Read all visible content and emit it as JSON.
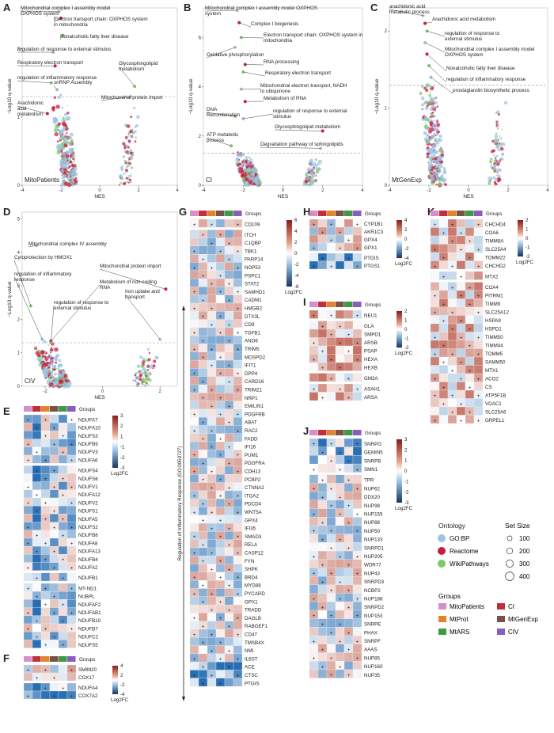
{
  "panel_labels": [
    "A",
    "B",
    "C",
    "D",
    "E",
    "F",
    "G",
    "H",
    "I",
    "J",
    "K"
  ],
  "chart_data": [
    {
      "type": "scatter",
      "id": "A",
      "panel_name": "MitoPatients",
      "xlabel": "NES",
      "ylabel": "−Log10 q-value",
      "xlim": [
        -4,
        4
      ],
      "ylim": [
        0,
        2.6
      ],
      "xticks": [
        "-4",
        "-2",
        "0",
        "2",
        "4"
      ],
      "yticks": [
        "0",
        "1",
        "2"
      ],
      "threshold": 1.3,
      "annotations": [
        {
          "text": "Mitochondrial complex I assembly model OXPHOS system",
          "x": -2.1,
          "y": 2.55
        },
        {
          "text": "Electron transport chain: OXPHOS system in mitochondria",
          "x": -2.0,
          "y": 2.45
        },
        {
          "text": "Nonalcoholic fatty liver disease",
          "x": -1.9,
          "y": 2.2
        },
        {
          "text": "regulation of response to external stimulus",
          "x": -2.4,
          "y": 1.95
        },
        {
          "text": "Respiratory electron transport",
          "x": -2.3,
          "y": 1.75
        },
        {
          "text": "regulation of inflammatory response",
          "x": -2.5,
          "y": 1.5
        },
        {
          "text": "snRNP Assembly",
          "x": -2.2,
          "y": 1.4
        },
        {
          "text": "Arachidonic acid metabolism",
          "x": -2.7,
          "y": 1.05
        },
        {
          "text": "Glycosphingolipid metabolism",
          "x": 1.8,
          "y": 1.45
        },
        {
          "text": "Mitochondrial protein import",
          "x": 1.6,
          "y": 1.3
        }
      ]
    },
    {
      "type": "scatter",
      "id": "B",
      "panel_name": "CI",
      "xlabel": "NES",
      "ylabel": "−Log10 q-value",
      "xlim": [
        -4,
        4
      ],
      "ylim": [
        0,
        7.2
      ],
      "xticks": [
        "-4",
        "-2",
        "0",
        "2",
        "4"
      ],
      "yticks": [
        "0",
        "2",
        "4",
        "6"
      ],
      "threshold": 1.3,
      "annotations": [
        {
          "text": "Mitochondrial complex I assembly model OXPHOS system",
          "x": -2.3,
          "y": 7.1
        },
        {
          "text": "Complex I biogenesis",
          "x": -2.2,
          "y": 6.6
        },
        {
          "text": "Electron transport chain: OXPHOS system in mitochondria",
          "x": -2.1,
          "y": 6.0
        },
        {
          "text": "Oxidative phosphorylation",
          "x": -2.4,
          "y": 5.6
        },
        {
          "text": "RNA processing",
          "x": -1.9,
          "y": 4.9
        },
        {
          "text": "Respiratory electron transport",
          "x": -2.0,
          "y": 4.6
        },
        {
          "text": "Mitochondrial electron transport, NADH to ubiquinone",
          "x": -2.1,
          "y": 3.9
        },
        {
          "text": "Metabolism of RNA",
          "x": -1.9,
          "y": 3.4
        },
        {
          "text": "DNA Recombination",
          "x": -2.4,
          "y": 2.8
        },
        {
          "text": "regulation of response to external stimulus",
          "x": -2.0,
          "y": 2.7
        },
        {
          "text": "Glycosphingolipid metabolism",
          "x": 2.0,
          "y": 2.2
        },
        {
          "text": "ATP metabolic process",
          "x": -2.6,
          "y": 1.6
        },
        {
          "text": "Degradation pathway of sphingolipids",
          "x": 1.9,
          "y": 1.5
        }
      ]
    },
    {
      "type": "scatter",
      "id": "C",
      "panel_name": "MtGenExp",
      "xlabel": "NES",
      "ylabel": "−Log10 q-value",
      "xlim": [
        -4,
        4
      ],
      "ylim": [
        0,
        2.3
      ],
      "xticks": [
        "-4",
        "-2",
        "0",
        "2",
        "4"
      ],
      "yticks": [
        "0",
        "1",
        "2"
      ],
      "threshold": 1.3,
      "annotations": [
        {
          "text": "arachidonic acid metabolic process",
          "x": -2.3,
          "y": 2.2
        },
        {
          "text": "Arachidonic acid metabolism",
          "x": -2.2,
          "y": 2.1
        },
        {
          "text": "regulation of response to external stimulus",
          "x": -2.1,
          "y": 2.0
        },
        {
          "text": "Mitochondrial complex I assembly model OXPHOS system",
          "x": -2.2,
          "y": 1.85
        },
        {
          "text": "Nonalcoholic fatty liver disease",
          "x": -2.1,
          "y": 1.7
        },
        {
          "text": "regulation of inflammatory response",
          "x": -2.0,
          "y": 1.55
        },
        {
          "text": "prostaglandin biosynthetic process",
          "x": -1.9,
          "y": 1.4
        }
      ]
    },
    {
      "type": "scatter",
      "id": "D",
      "panel_name": "CIV",
      "xlabel": "NES",
      "ylabel": "−Log10 q-value",
      "xlim": [
        -2.8,
        2.6
      ],
      "ylim": [
        0,
        5.2
      ],
      "xticks": [
        "-2",
        "0",
        "2"
      ],
      "yticks": [
        "0",
        "1",
        "2",
        "3",
        "4",
        "5"
      ],
      "threshold": 1.3,
      "annotations": [
        {
          "text": "Mitochondrial complex IV assembly",
          "x": -2.3,
          "y": 4.2
        },
        {
          "text": "Mitochondrial protein import",
          "x": 2.2,
          "y": 2.9
        },
        {
          "text": "Cytoprotection by HMOX1",
          "x": -2.5,
          "y": 2.4
        },
        {
          "text": "regulation of inflammatory response",
          "x": -2.1,
          "y": 1.4
        },
        {
          "text": "Metabolism of non-coding RNA",
          "x": -1.8,
          "y": 1.35
        },
        {
          "text": "regulation of response to external stimulus",
          "x": -1.8,
          "y": 1.3
        },
        {
          "text": "Iron uptake and transport",
          "x": 2.0,
          "y": 1.4
        }
      ]
    },
    {
      "type": "heatmap",
      "id": "E",
      "groups_label": "Groups",
      "scale_label": "Log2FC",
      "scale": [
        3,
        2,
        1,
        -1,
        -2,
        -3
      ],
      "rows": [
        "NDUFA7",
        "NDUFA10",
        "NDUFS3",
        "NDUFB9",
        "NDUFV3",
        "NDUFA6",
        "NDUFS4",
        "NDUFS6",
        "NDUFV1",
        "NDUFA12",
        "NDUFV2",
        "NDUFS1",
        "NDUFA5",
        "NDUFS2",
        "NDUFB8",
        "NDUFA8",
        "NDUFA13",
        "NDUFB4",
        "NDUFA2",
        "NDUFB1",
        "MT-ND1",
        "NUBPL",
        "NDUFAF2",
        "NDUFAB1",
        "NDUFB10",
        "NDUFB7",
        "NDUFC2",
        "NDUFS5"
      ]
    },
    {
      "type": "heatmap",
      "id": "F",
      "groups_label": "Groups",
      "scale_label": "Log2FC",
      "scale": [
        4,
        2,
        -2,
        -4
      ],
      "rows": [
        "SMIM20",
        "COX17",
        "NDUFA4",
        "COX7A2"
      ]
    },
    {
      "type": "heatmap",
      "id": "G",
      "groups_label": "Groups",
      "scale_label": "Log2FC",
      "scale": [
        6,
        4,
        2,
        0,
        -2,
        -4,
        -6
      ],
      "side_label": "Regulation of Inflammatory Response (GO:0050727)",
      "rows": [
        "CD109",
        "ITCH",
        "C1QBP",
        "TBK1",
        "PARP14",
        "NOP53",
        "PSPC1",
        "STAT2",
        "SAMHD1",
        "CADM1",
        "HMGB2",
        "DTX3L",
        "CD9",
        "TGFB1",
        "ANO6",
        "TRIM5",
        "MOSPD2",
        "IFIT1",
        "DPP4",
        "CARD16",
        "TRIM21",
        "NRP1",
        "EMILIN1",
        "PDGFRB",
        "ABAT",
        "RAC2",
        "FADD",
        "IFI16",
        "PUM1",
        "PDGFRA",
        "CDH13",
        "PCBP2",
        "CTNNA2",
        "ITGA2",
        "PDCD4",
        "WNT5A",
        "GPX4",
        "IFI35",
        "SMAD3",
        "RELA",
        "CASP12",
        "FYN",
        "SHPK",
        "BRD4",
        "MYD88",
        "PYCARD",
        "GPX1",
        "TRADD",
        "DAGLB",
        "RABGEF1",
        "CD47",
        "TMSB4X",
        "NMI",
        "IL6ST",
        "ACE",
        "CTSC",
        "PTGIS"
      ]
    },
    {
      "type": "heatmap",
      "id": "H",
      "groups_label": "Groups",
      "scale_label": "Log2FC",
      "scale": [
        4,
        2,
        0,
        -2,
        -4
      ],
      "rows": [
        "CYP1B1",
        "AKR1C3",
        "GPX4",
        "GPX1",
        "PTGIS",
        "PTGS1"
      ]
    },
    {
      "type": "heatmap",
      "id": "I",
      "groups_label": "Groups",
      "scale_label": "Log2FC",
      "scale": [
        2,
        1,
        0,
        -1,
        -2
      ],
      "rows": [
        "NEU1",
        "GLA",
        "SMPD1",
        "ARSB",
        "PSAP",
        "HEXA",
        "HEXB",
        "GM2A",
        "ASAH1",
        "ARSA"
      ]
    },
    {
      "type": "heatmap",
      "id": "J",
      "groups_label": "Groups",
      "scale_label": "Log2FC",
      "scale": [
        3,
        2,
        1,
        0,
        -1,
        -2,
        -3
      ],
      "rows": [
        "SNRPG",
        "GEMIN5",
        "SNRPB",
        "SMN1",
        "TPR",
        "NUP62",
        "DDX20",
        "NUP98",
        "NUP155",
        "NUP88",
        "NUP50",
        "NUP133",
        "SNRPD1",
        "NUP205",
        "WDR77",
        "NUP43",
        "SNRPD3",
        "NCBP2",
        "NUP188",
        "SNRPD2",
        "NUP153",
        "SNRPE",
        "PHAX",
        "SNRPF",
        "AAAS",
        "NUP85",
        "NUP160",
        "NUP35"
      ]
    },
    {
      "type": "heatmap",
      "id": "K",
      "groups_label": "Groups",
      "scale_label": "Log2FC",
      "scale": [
        2,
        1,
        0,
        -1,
        -2
      ],
      "rows": [
        "CHCHD4",
        "COA6",
        "TIMM8A",
        "SLC25A4",
        "TOMM22",
        "CHCHD2",
        "MTX2",
        "COA4",
        "PITRM1",
        "TIMM9",
        "SLC25A12",
        "HSPA9",
        "HSPD1",
        "TIMM50",
        "TIMM44",
        "TOMM5",
        "SAMM50",
        "MTX1",
        "ACO2",
        "CS",
        "ATP5F1B",
        "VDAC1",
        "SLC25A6",
        "GRPEL1"
      ]
    }
  ],
  "legend": {
    "ontology_title": "Ontology",
    "ontology": [
      {
        "label": "GO:BP",
        "color": "#9dc3e6"
      },
      {
        "label": "Reactome",
        "color": "#c8203c"
      },
      {
        "label": "WikiPathways",
        "color": "#7ec86b"
      }
    ],
    "setsize_title": "Set Size",
    "setsize": [
      "100",
      "200",
      "300",
      "400"
    ],
    "groups_title": "Groups",
    "groups": [
      {
        "label": "MitoPatients",
        "color": "#d68fc7"
      },
      {
        "label": "CI",
        "color": "#c0303c"
      },
      {
        "label": "MtProt",
        "color": "#e3832b"
      },
      {
        "label": "MtGenExp",
        "color": "#7a5145"
      },
      {
        "label": "MtARS",
        "color": "#3f9a45"
      },
      {
        "label": "CIV",
        "color": "#8a5cc0"
      }
    ]
  }
}
